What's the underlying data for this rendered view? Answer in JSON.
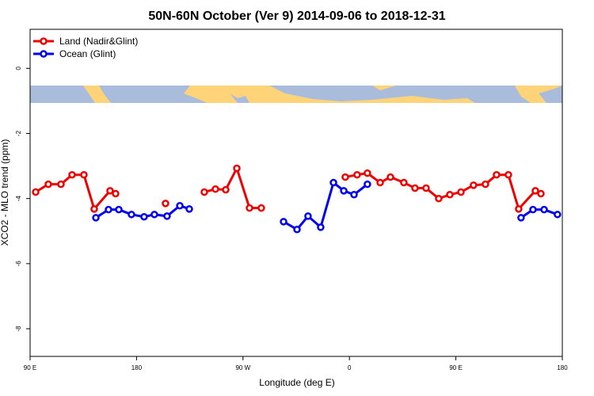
{
  "chart_data": {
    "type": "line",
    "title": "50N-60N October (Ver 9)   2014-09-06 to 2018-12-31",
    "x_label": "Longitude (deg E)",
    "y_label": "XCO2 - MLO trend (ppm)",
    "xlim": [
      90,
      540
    ],
    "xticks": [
      {
        "value": 90,
        "label": "90 E"
      },
      {
        "value": 180,
        "label": "180"
      },
      {
        "value": 270,
        "label": "90 W"
      },
      {
        "value": 360,
        "label": "0"
      },
      {
        "value": 450,
        "label": "90 E"
      },
      {
        "value": 540,
        "label": "180"
      }
    ],
    "ylim": [
      -8.85,
      1.2
    ],
    "yticks": [
      0,
      -2,
      -4,
      -6,
      -8
    ],
    "grid": false,
    "legend": "top-left",
    "series": [
      {
        "name": "Land (Nadir&Glint)",
        "color": "#ee0000",
        "x": [
          94.7,
          105.4,
          116.1,
          125.5,
          135.5,
          144.2,
          157.6,
          162.3,
          null,
          204.5,
          null,
          237.3,
          246.7,
          255.4,
          264.8,
          275.5,
          285.5,
          null,
          356.5,
          366.5,
          375.2,
          386.0,
          394.7,
          406.0,
          415.4,
          424.8,
          435.5,
          444.9,
          454.3,
          464.9,
          475.0,
          484.4,
          494.4,
          503.1,
          517.2,
          521.9
        ],
        "values": [
          -3.8,
          -3.56,
          -3.56,
          -3.27,
          -3.27,
          -4.32,
          -3.76,
          -3.85,
          null,
          -4.15,
          null,
          -3.8,
          -3.71,
          -3.73,
          -3.07,
          -4.29,
          -4.29,
          null,
          -3.34,
          -3.27,
          -3.22,
          -3.51,
          -3.34,
          -3.51,
          -3.68,
          -3.68,
          -4.0,
          -3.88,
          -3.8,
          -3.59,
          -3.56,
          -3.27,
          -3.27,
          -4.32,
          -3.76,
          -3.85
        ]
      },
      {
        "name": "Ocean (Glint)",
        "color": "#0000ee",
        "x": [
          145.6,
          156.3,
          165.0,
          175.7,
          186.4,
          195.1,
          205.8,
          216.6,
          224.6,
          null,
          304.3,
          315.7,
          325.0,
          335.7,
          346.5,
          355.2,
          363.9,
          375.2,
          null,
          505.1,
          515.2,
          524.6,
          535.9
        ],
        "values": [
          -4.59,
          -4.34,
          -4.34,
          -4.49,
          -4.56,
          -4.49,
          -4.54,
          -4.22,
          -4.32,
          null,
          -4.71,
          -4.95,
          -4.54,
          -4.88,
          -3.51,
          -3.76,
          -3.88,
          -3.56,
          null,
          -4.59,
          -4.34,
          -4.34,
          -4.49
        ]
      }
    ]
  }
}
